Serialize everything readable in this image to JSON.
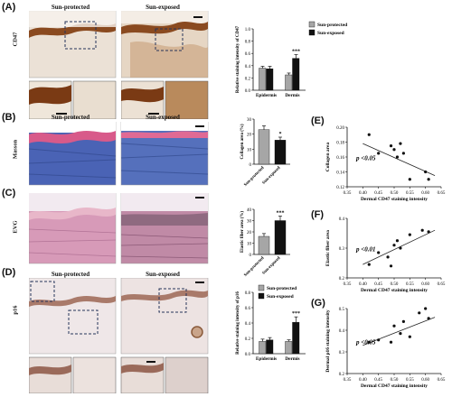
{
  "panels": {
    "A": {
      "label": "(A)",
      "headers": [
        "Sun-protected",
        "Sun-exposed"
      ],
      "row_label": "CD47"
    },
    "B": {
      "label": "(B)",
      "headers": [
        "Sun-protected",
        "Sun-exposed"
      ],
      "row_label": "Masson"
    },
    "C": {
      "label": "(C)",
      "row_label": "EVG"
    },
    "D": {
      "label": "(D)",
      "headers": [
        "Sun-protected",
        "Sun-exposed"
      ],
      "row_label": "p16"
    },
    "E": {
      "label": "(E)"
    },
    "F": {
      "label": "(F)"
    },
    "G": {
      "label": "(G)"
    }
  },
  "colors": {
    "protected_bar": "#a6a6a6",
    "exposed_bar": "#111111",
    "dash_box": "#26345a",
    "ihc_epidermis": "#8a4a20",
    "masson_collagen": "#4a63b5",
    "evg_tissue": "#d79ab8"
  },
  "chart_data": [
    {
      "id": "A-bar",
      "type": "bar",
      "ylabel": "Relative staining intensity of CD47",
      "categories": [
        "Epidermis",
        "Dermis"
      ],
      "legend": [
        "Sun-protected",
        "Sun-exposed"
      ],
      "legend_position": "top-right",
      "series": [
        {
          "name": "Sun-protected",
          "values": [
            0.36,
            0.25
          ],
          "errors": [
            0.03,
            0.03
          ]
        },
        {
          "name": "Sun-exposed",
          "values": [
            0.35,
            0.52
          ],
          "errors": [
            0.04,
            0.06
          ]
        }
      ],
      "yticks": [
        0.0,
        0.2,
        0.4,
        0.6,
        0.8,
        1.0
      ],
      "ylim": [
        0,
        1.0
      ],
      "significance": [
        "",
        "***"
      ]
    },
    {
      "id": "B-bar",
      "type": "bar",
      "ylabel": "Collagen area (%)",
      "categories": [
        "Sun-protected",
        "Sun-exposed"
      ],
      "values": [
        23,
        16
      ],
      "errors": [
        2.5,
        2
      ],
      "yticks": [
        0,
        10,
        20,
        30
      ],
      "ylim": [
        0,
        30
      ],
      "significance": [
        "",
        "*"
      ]
    },
    {
      "id": "C-bar",
      "type": "bar",
      "ylabel": "Elastic fiber area (%)",
      "categories": [
        "Sun-protected",
        "Sun-exposed"
      ],
      "values": [
        16,
        30
      ],
      "errors": [
        2.5,
        4
      ],
      "yticks": [
        0,
        10,
        20,
        30,
        40
      ],
      "ylim": [
        0,
        40
      ],
      "significance": [
        "",
        "***"
      ]
    },
    {
      "id": "D-bar",
      "type": "bar",
      "ylabel": "Relative staining intensity of p16",
      "categories": [
        "Epidermis",
        "Dermis"
      ],
      "legend": [
        "Sun-protected",
        "Sun-exposed"
      ],
      "legend_position": "top-left",
      "series": [
        {
          "name": "Sun-protected",
          "values": [
            0.16,
            0.16
          ],
          "errors": [
            0.03,
            0.02
          ]
        },
        {
          "name": "Sun-exposed",
          "values": [
            0.18,
            0.41
          ],
          "errors": [
            0.03,
            0.07
          ]
        }
      ],
      "yticks": [
        0.0,
        0.2,
        0.4,
        0.6,
        0.8
      ],
      "ylim": [
        0,
        0.8
      ],
      "significance": [
        "",
        "***"
      ]
    },
    {
      "id": "E-scatter",
      "type": "scatter",
      "xlabel": "Dermal CD47 staining intensity",
      "ylabel": "Collagen area",
      "annotation": "p <0.05",
      "xticks": [
        0.35,
        0.4,
        0.45,
        0.5,
        0.55,
        0.6,
        0.65
      ],
      "yticks": [
        0.12,
        0.14,
        0.16,
        0.18,
        0.2
      ],
      "xlim": [
        0.35,
        0.65
      ],
      "ylim": [
        0.12,
        0.2
      ],
      "x": [
        0.42,
        0.45,
        0.49,
        0.5,
        0.51,
        0.52,
        0.53,
        0.55,
        0.6,
        0.61
      ],
      "y": [
        0.19,
        0.165,
        0.175,
        0.17,
        0.16,
        0.178,
        0.165,
        0.13,
        0.14,
        0.13
      ],
      "fit": [
        [
          0.4,
          0.178
        ],
        [
          0.63,
          0.135
        ]
      ]
    },
    {
      "id": "F-scatter",
      "type": "scatter",
      "xlabel": "Dermal CD47 staining intensity",
      "ylabel": "Elastic fiber area",
      "annotation": "p <0.01",
      "xticks": [
        0.35,
        0.4,
        0.45,
        0.5,
        0.55,
        0.6,
        0.65
      ],
      "yticks": [
        0.2,
        0.3,
        0.4
      ],
      "xlim": [
        0.35,
        0.65
      ],
      "ylim": [
        0.2,
        0.4
      ],
      "x": [
        0.42,
        0.45,
        0.48,
        0.49,
        0.5,
        0.51,
        0.52,
        0.55,
        0.59,
        0.61
      ],
      "y": [
        0.245,
        0.285,
        0.27,
        0.24,
        0.31,
        0.325,
        0.3,
        0.345,
        0.36,
        0.355
      ],
      "fit": [
        [
          0.4,
          0.245
        ],
        [
          0.63,
          0.36
        ]
      ]
    },
    {
      "id": "G-scatter",
      "type": "scatter",
      "xlabel": "Dermal CD47 staining intensity",
      "ylabel": "Dermal p16 staining intensity",
      "annotation": "p <0.05",
      "xticks": [
        0.35,
        0.4,
        0.45,
        0.5,
        0.55,
        0.6,
        0.65
      ],
      "yticks": [
        0.2,
        0.3,
        0.4,
        0.5
      ],
      "xlim": [
        0.35,
        0.65
      ],
      "ylim": [
        0.2,
        0.5
      ],
      "x": [
        0.42,
        0.45,
        0.49,
        0.5,
        0.52,
        0.53,
        0.55,
        0.58,
        0.6,
        0.61
      ],
      "y": [
        0.345,
        0.355,
        0.345,
        0.42,
        0.385,
        0.44,
        0.37,
        0.48,
        0.5,
        0.455
      ],
      "fit": [
        [
          0.4,
          0.33
        ],
        [
          0.63,
          0.46
        ]
      ]
    }
  ]
}
